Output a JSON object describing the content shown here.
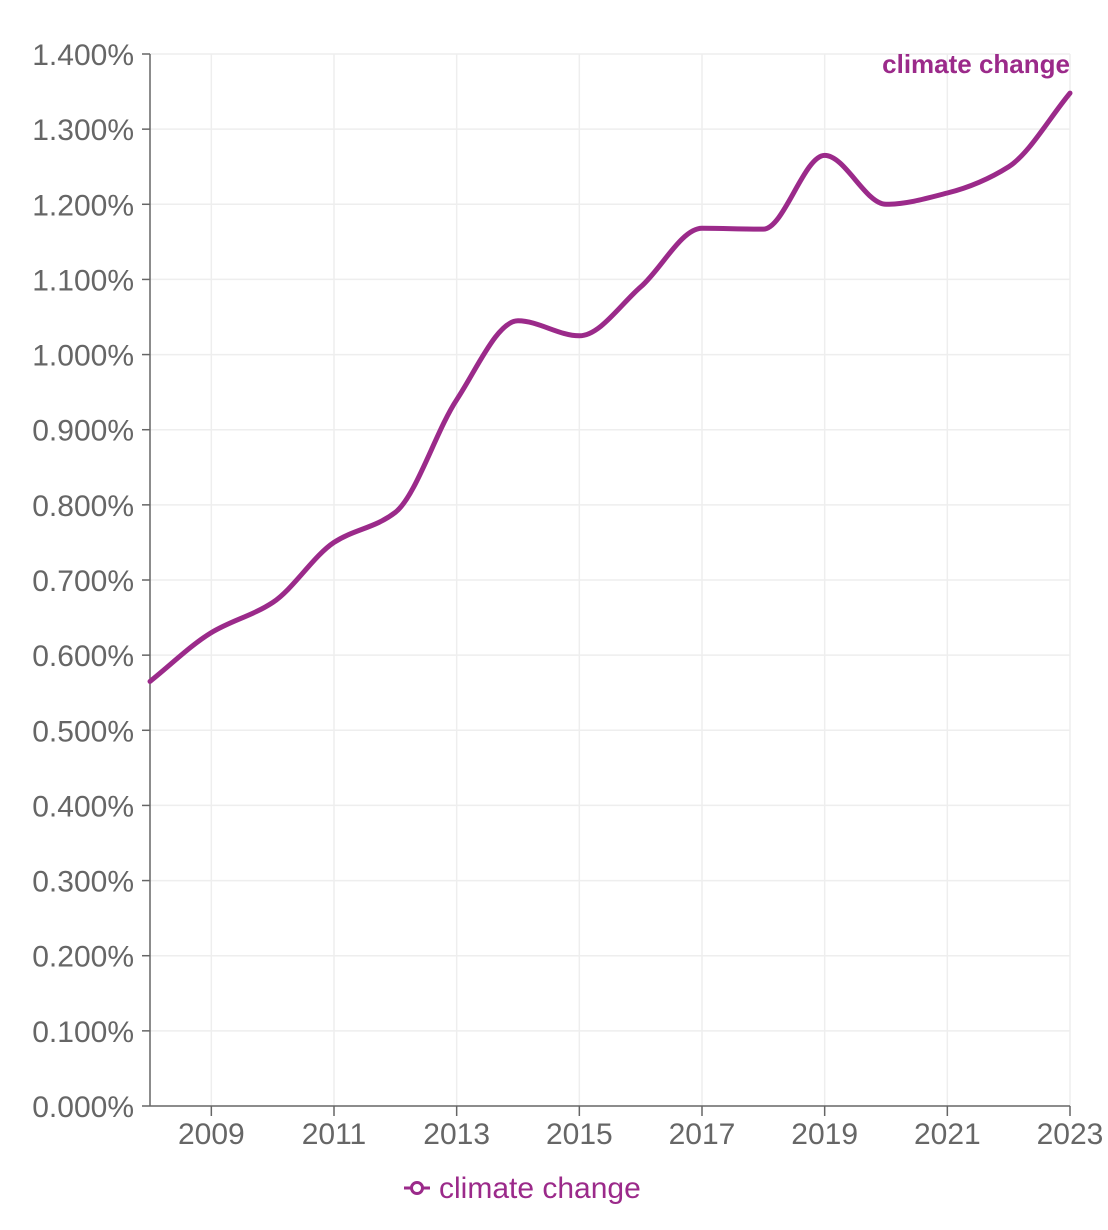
{
  "chart_data": {
    "type": "line",
    "title": "",
    "xlabel": "",
    "ylabel": "",
    "x": [
      2008,
      2009,
      2010,
      2011,
      2012,
      2013,
      2014,
      2015,
      2016,
      2017,
      2018,
      2019,
      2020,
      2021,
      2022,
      2023
    ],
    "x_ticks": [
      "2009",
      "2011",
      "2013",
      "2015",
      "2017",
      "2019",
      "2021",
      "2023"
    ],
    "y_ticks": [
      "0.000%",
      "0.100%",
      "0.200%",
      "0.300%",
      "0.400%",
      "0.500%",
      "0.600%",
      "0.700%",
      "0.800%",
      "0.900%",
      "1.000%",
      "1.100%",
      "1.200%",
      "1.300%",
      "1.400%"
    ],
    "xlim": [
      2008,
      2023
    ],
    "ylim": [
      0,
      1.4
    ],
    "grid": true,
    "legend": "bottom",
    "series": [
      {
        "name": "climate change",
        "color": "#9b2a8a",
        "values": [
          0.565,
          0.63,
          0.67,
          0.75,
          0.79,
          0.94,
          1.045,
          1.025,
          1.09,
          1.168,
          1.167,
          1.265,
          1.2,
          1.215,
          1.25,
          1.348
        ]
      }
    ],
    "series_end_label": "climate change",
    "legend_label": "climate change"
  },
  "colors": {
    "series": "#9b2a8a",
    "axis": "#666666",
    "grid": "#eeeeee"
  }
}
